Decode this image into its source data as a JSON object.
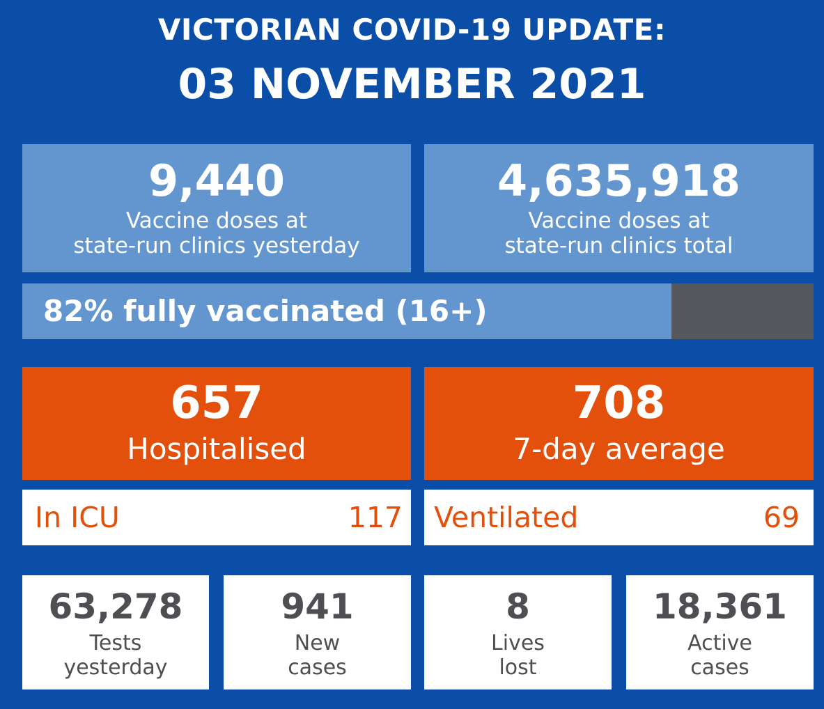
{
  "header": {
    "title_line1": "VICTORIAN COVID-19 UPDATE:",
    "title_line2": "03 NOVEMBER 2021"
  },
  "vaccines": {
    "yesterday": {
      "value": "9,440",
      "label_line1": "Vaccine doses at",
      "label_line2": "state-run clinics yesterday"
    },
    "total": {
      "value": "4,635,918",
      "label_line1": "Vaccine doses at",
      "label_line2": "state-run clinics total"
    }
  },
  "fully_vaccinated": {
    "label": "82% fully vaccinated (16+)",
    "percent": 82
  },
  "hospital": {
    "hospitalised": {
      "value": "657",
      "label": "Hospitalised"
    },
    "average": {
      "value": "708",
      "label": "7-day average"
    },
    "icu": {
      "label": "In ICU",
      "value": "117"
    },
    "ventilated": {
      "label": "Ventilated",
      "value": "69"
    }
  },
  "stats": [
    {
      "value": "63,278",
      "label_line1": "Tests",
      "label_line2": "yesterday"
    },
    {
      "value": "941",
      "label_line1": "New",
      "label_line2": "cases"
    },
    {
      "value": "8",
      "label_line1": "Lives",
      "label_line2": "lost"
    },
    {
      "value": "18,361",
      "label_line1": "Active",
      "label_line2": "cases"
    }
  ],
  "colors": {
    "background": "#0a4ea8",
    "light_blue": "#6396cf",
    "orange": "#e2500b",
    "dark_grey": "#55585d",
    "stat_text": "#4d4f53"
  }
}
